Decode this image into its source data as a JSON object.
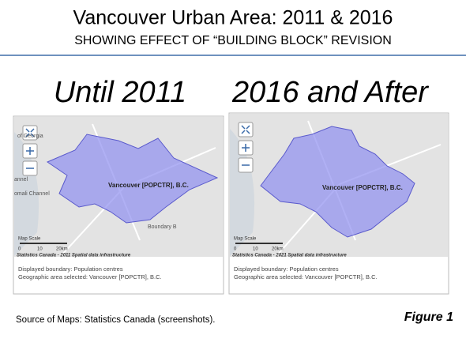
{
  "header": {
    "title": "Vancouver Urban Area: 2011 & 2016",
    "subtitle": "SHOWING EFFECT OF “BUILDING BLOCK” REVISION"
  },
  "panels": [
    {
      "heading": "Until 2011",
      "place_labels": [
        "of Georgia",
        "annel",
        "omali Channel",
        "Boundary B"
      ],
      "area_label": "Vancouver [POPCTR], B.C.",
      "scale_title": "Map Scale",
      "scale_labels": [
        "0",
        "10",
        "20km"
      ],
      "credit": "Statistics Canada - 2011 Spatial data infrastructure",
      "caption": [
        "Displayed boundary: Population centres",
        "Geographic area selected: Vancouver [POPCTR], B.C."
      ]
    },
    {
      "heading": "2016 and After",
      "place_labels": [],
      "area_label": "Vancouver [POPCTR], B.C.",
      "scale_title": "Map Scale",
      "scale_labels": [
        "0",
        "10",
        "20km"
      ],
      "credit": "Statistics Canada - 2021 Spatial data infrastructure",
      "caption": [
        "Displayed boundary: Population centres",
        "Geographic area selected: Vancouver [POPCTR], B.C."
      ]
    }
  ],
  "footer": {
    "source": "Source of Maps: Statistics Canada (screenshots).",
    "figure": "Figure 1"
  }
}
